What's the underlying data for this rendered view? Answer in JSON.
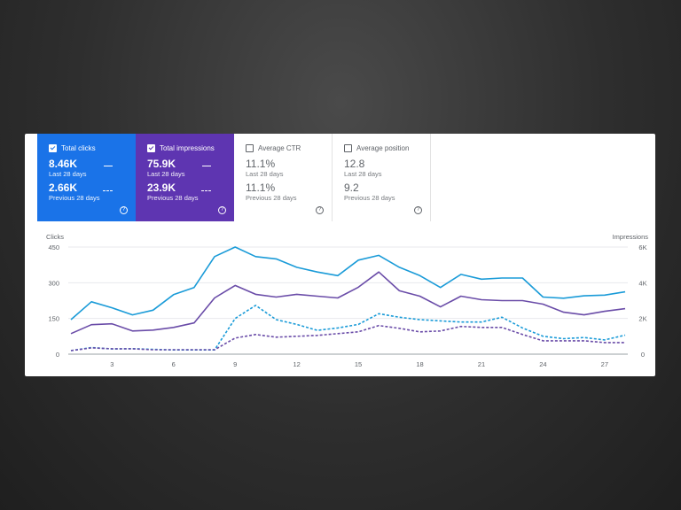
{
  "metrics": [
    {
      "label": "Total clicks",
      "value": "8.46K",
      "period": "Last 28 days",
      "prev_value": "2.66K",
      "prev_period": "Previous 28 days",
      "checked": true,
      "color": "#1a73e8",
      "help": "?"
    },
    {
      "label": "Total impressions",
      "value": "75.9K",
      "period": "Last 28 days",
      "prev_value": "23.9K",
      "prev_period": "Previous 28 days",
      "checked": true,
      "color": "#5e35b1",
      "help": "?"
    },
    {
      "label": "Average CTR",
      "value": "11.1%",
      "period": "Last 28 days",
      "prev_value": "11.1%",
      "prev_period": "Previous 28 days",
      "checked": false,
      "help": "?"
    },
    {
      "label": "Average position",
      "value": "12.8",
      "period": "Last 28 days",
      "prev_value": "9.2",
      "prev_period": "Previous 28 days",
      "checked": false,
      "help": "?"
    }
  ],
  "chart_data": {
    "type": "line",
    "ylabel": "Clicks",
    "y2label": "Impressions",
    "ylim": [
      0,
      450
    ],
    "y_ticks": [
      "0",
      "150",
      "300",
      "450"
    ],
    "y2lim": [
      0,
      6000
    ],
    "y2_ticks": [
      "0",
      "2K",
      "4K",
      "6K"
    ],
    "x_ticks": [
      "3",
      "6",
      "9",
      "12",
      "15",
      "18",
      "21",
      "24",
      "27"
    ],
    "x": [
      1,
      2,
      3,
      4,
      5,
      6,
      7,
      8,
      9,
      10,
      11,
      12,
      13,
      14,
      15,
      16,
      17,
      18,
      19,
      20,
      21,
      22,
      23,
      24,
      25,
      26,
      27,
      28
    ],
    "grid": true,
    "series": [
      {
        "axis": "left",
        "style": "solid",
        "color": "#1a9bd8",
        "values": [
          145,
          220,
          195,
          165,
          185,
          250,
          280,
          410,
          450,
          410,
          400,
          365,
          345,
          330,
          395,
          415,
          365,
          330,
          280,
          335,
          315,
          320,
          320,
          240,
          235,
          245,
          248,
          262
        ]
      },
      {
        "axis": "right",
        "style": "solid",
        "color": "#6a4ca8",
        "values": [
          1150,
          1650,
          1700,
          1300,
          1350,
          1500,
          1750,
          3150,
          3850,
          3350,
          3200,
          3350,
          3250,
          3150,
          3750,
          4600,
          3550,
          3250,
          2650,
          3250,
          3050,
          3000,
          3000,
          2800,
          2350,
          2200,
          2400,
          2550
        ]
      },
      {
        "axis": "left",
        "style": "dashed",
        "color": "#1a9bd8",
        "values": [
          15,
          28,
          22,
          23,
          20,
          18,
          18,
          18,
          150,
          205,
          145,
          125,
          100,
          110,
          125,
          170,
          155,
          145,
          140,
          135,
          135,
          155,
          110,
          75,
          65,
          70,
          60,
          80
        ]
      },
      {
        "axis": "right",
        "style": "dashed",
        "color": "#6a4ca8",
        "values": [
          200,
          350,
          300,
          300,
          250,
          250,
          250,
          250,
          900,
          1100,
          950,
          1000,
          1050,
          1150,
          1250,
          1600,
          1450,
          1250,
          1300,
          1550,
          1500,
          1500,
          1100,
          750,
          750,
          750,
          650,
          650
        ]
      }
    ]
  }
}
